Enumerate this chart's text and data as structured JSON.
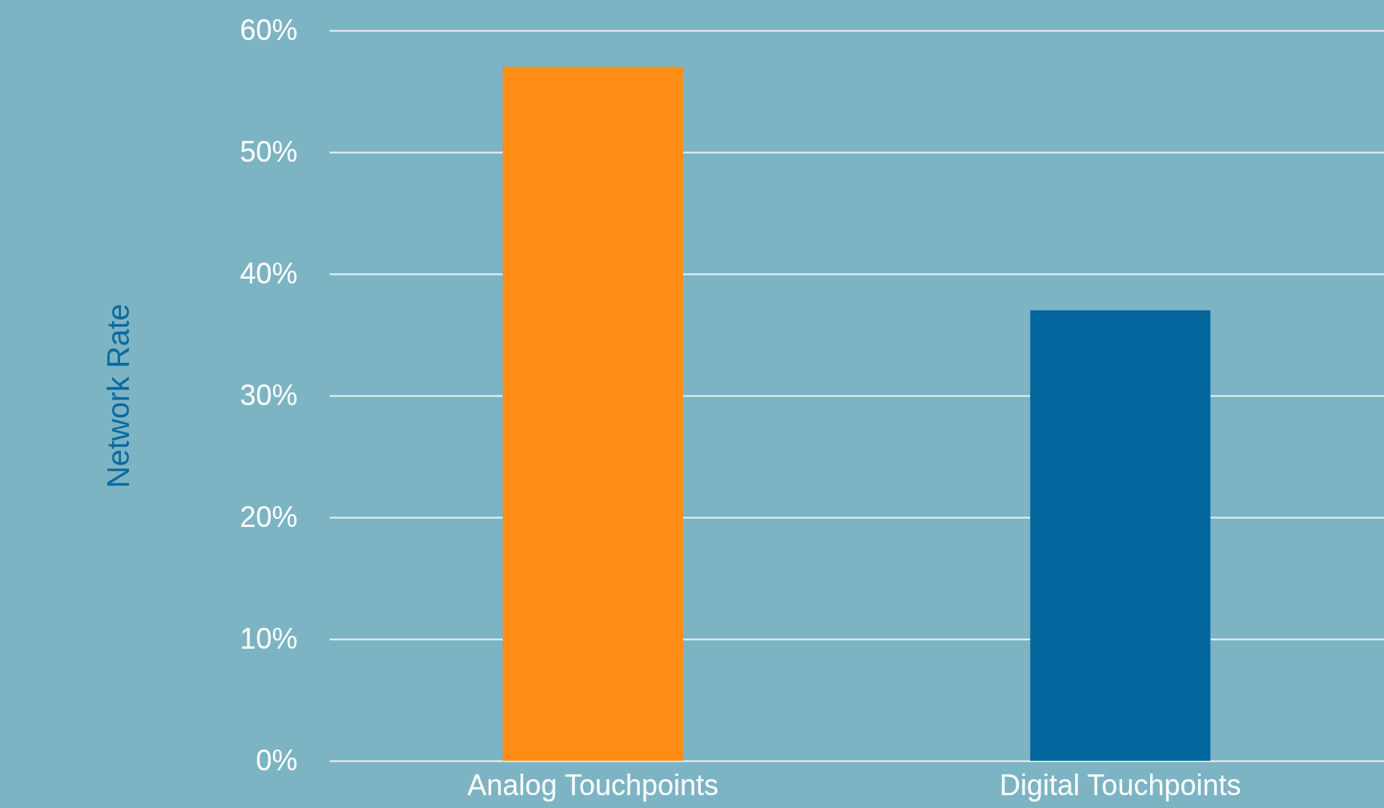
{
  "chart_data": {
    "type": "bar",
    "ylabel": "Network Rate",
    "categories": [
      "Analog Touchpoints",
      "Digital Touchpoints"
    ],
    "values": [
      57,
      37
    ],
    "colors": [
      "#ff8c14",
      "#03669d"
    ],
    "ylim": [
      0,
      60
    ],
    "yticks": [
      {
        "value": 0,
        "label": "0%"
      },
      {
        "value": 10,
        "label": "10%"
      },
      {
        "value": 20,
        "label": "20%"
      },
      {
        "value": 30,
        "label": "30%"
      },
      {
        "value": 40,
        "label": "40%"
      },
      {
        "value": 50,
        "label": "50%"
      },
      {
        "value": 60,
        "label": "60%"
      }
    ],
    "grid": "y"
  }
}
